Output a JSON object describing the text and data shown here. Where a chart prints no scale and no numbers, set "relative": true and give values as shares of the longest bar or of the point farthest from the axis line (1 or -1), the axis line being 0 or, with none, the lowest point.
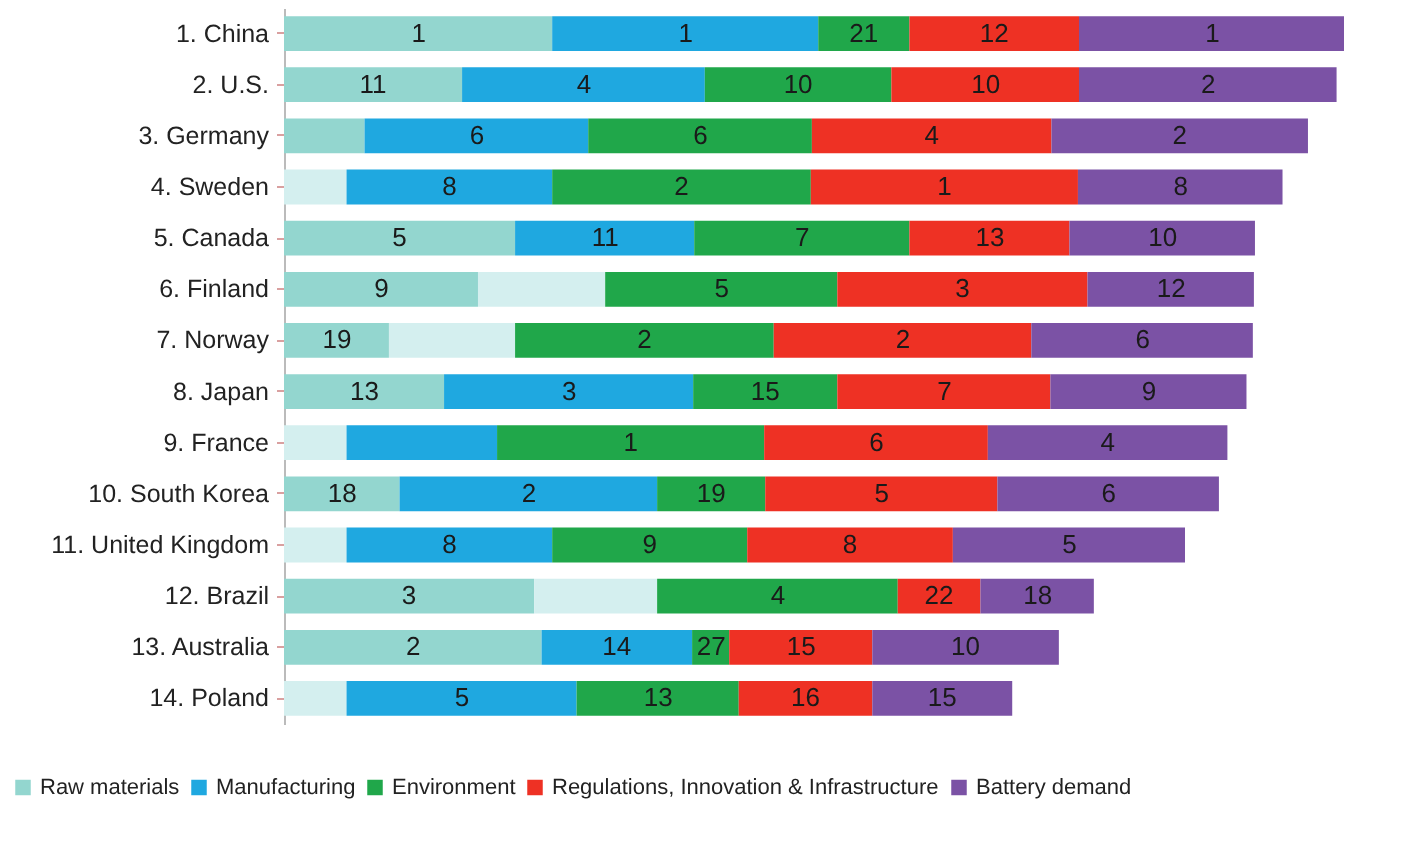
{
  "chart_data": {
    "type": "bar",
    "orientation": "horizontal",
    "stacked": true,
    "relative": true,
    "legend": "bottom",
    "categories": [
      "1. China",
      "2. U.S.",
      "3. Germany",
      "4. Sweden",
      "5. Canada",
      "6. Finland",
      "7. Norway",
      "8. Japan",
      "9. France",
      "10. South Korea",
      "11. United Kingdom",
      "12. Brazil",
      "13. Australia",
      "14. Poland"
    ],
    "series": [
      {
        "name": "Raw materials",
        "color": "#93d6cf",
        "colors": [
          "#93d6cf",
          "#93d6cf",
          "#93d6cf",
          "#d4efef",
          "#93d6cf",
          "#93d6cf",
          "#93d6cf",
          "#93d6cf",
          "#d4efef",
          "#93d6cf",
          "#d4efef",
          "#93d6cf",
          "#93d6cf",
          "#d4efef"
        ],
        "values": [
          0.253,
          0.168,
          0.076,
          0.059,
          0.218,
          0.183,
          0.099,
          0.151,
          0.059,
          0.109,
          0.059,
          0.236,
          0.243,
          0.059
        ]
      },
      {
        "name": "Manufacturing",
        "color": "#1fa8e0",
        "colors": [
          "#1fa8e0",
          "#1fa8e0",
          "#1fa8e0",
          "#1fa8e0",
          "#1fa8e0",
          "#d4efef",
          "#d4efef",
          "#1fa8e0",
          "#1fa8e0",
          "#1fa8e0",
          "#1fa8e0",
          "#d4efef",
          "#1fa8e0",
          "#1fa8e0"
        ],
        "values": [
          0.251,
          0.229,
          0.211,
          0.194,
          0.169,
          0.12,
          0.119,
          0.235,
          0.142,
          0.243,
          0.194,
          0.116,
          0.142,
          0.217
        ]
      },
      {
        "name": "Environment",
        "color": "#20a74a",
        "values": [
          0.086,
          0.176,
          0.211,
          0.244,
          0.203,
          0.219,
          0.244,
          0.136,
          0.252,
          0.102,
          0.184,
          0.227,
          0.035,
          0.153
        ]
      },
      {
        "name": "Regulations, Innovation & Infrastructure",
        "color": "#ee3124",
        "values": [
          0.16,
          0.177,
          0.226,
          0.252,
          0.151,
          0.236,
          0.243,
          0.201,
          0.211,
          0.219,
          0.194,
          0.078,
          0.135,
          0.126
        ]
      },
      {
        "name": "Battery demand",
        "color": "#7b52a5",
        "values": [
          0.25,
          0.243,
          0.242,
          0.193,
          0.175,
          0.157,
          0.209,
          0.185,
          0.226,
          0.209,
          0.219,
          0.107,
          0.176,
          0.132
        ]
      }
    ],
    "annotations": [
      {
        "text": "1",
        "x": 0.127,
        "y": "1. China"
      },
      {
        "text": "1",
        "x": 0.379,
        "y": "1. China"
      },
      {
        "text": "21",
        "x": 0.547,
        "y": "1. China"
      },
      {
        "text": "12",
        "x": 0.67,
        "y": "1. China"
      },
      {
        "text": "1",
        "x": 0.876,
        "y": "1. China"
      },
      {
        "text": "11",
        "x": 0.084,
        "y": "2. U.S."
      },
      {
        "text": "4",
        "x": 0.283,
        "y": "2. U.S."
      },
      {
        "text": "10",
        "x": 0.485,
        "y": "2. U.S."
      },
      {
        "text": "10",
        "x": 0.662,
        "y": "2. U.S."
      },
      {
        "text": "2",
        "x": 0.872,
        "y": "2. U.S."
      },
      {
        "text": "6",
        "x": 0.182,
        "y": "3. Germany"
      },
      {
        "text": "6",
        "x": 0.393,
        "y": "3. Germany"
      },
      {
        "text": "4",
        "x": 0.611,
        "y": "3. Germany"
      },
      {
        "text": "2",
        "x": 0.845,
        "y": "3. Germany"
      },
      {
        "text": "8",
        "x": 0.156,
        "y": "4. Sweden"
      },
      {
        "text": "2",
        "x": 0.375,
        "y": "4. Sweden"
      },
      {
        "text": "1",
        "x": 0.623,
        "y": "4. Sweden"
      },
      {
        "text": "8",
        "x": 0.846,
        "y": "4. Sweden"
      },
      {
        "text": "5",
        "x": 0.109,
        "y": "5. Canada"
      },
      {
        "text": "11",
        "x": 0.303,
        "y": "5. Canada"
      },
      {
        "text": "7",
        "x": 0.489,
        "y": "5. Canada"
      },
      {
        "text": "13",
        "x": 0.666,
        "y": "5. Canada"
      },
      {
        "text": "10",
        "x": 0.829,
        "y": "5. Canada"
      },
      {
        "text": "9",
        "x": 0.092,
        "y": "6. Finland"
      },
      {
        "text": "5",
        "x": 0.413,
        "y": "6. Finland"
      },
      {
        "text": "3",
        "x": 0.64,
        "y": "6. Finland"
      },
      {
        "text": "12",
        "x": 0.837,
        "y": "6. Finland"
      },
      {
        "text": "19",
        "x": 0.05,
        "y": "7. Norway"
      },
      {
        "text": "2",
        "x": 0.34,
        "y": "7. Norway"
      },
      {
        "text": "2",
        "x": 0.584,
        "y": "7. Norway"
      },
      {
        "text": "6",
        "x": 0.81,
        "y": "7. Norway"
      },
      {
        "text": "13",
        "x": 0.076,
        "y": "8. Japan"
      },
      {
        "text": "3",
        "x": 0.269,
        "y": "8. Japan"
      },
      {
        "text": "15",
        "x": 0.454,
        "y": "8. Japan"
      },
      {
        "text": "7",
        "x": 0.623,
        "y": "8. Japan"
      },
      {
        "text": "9",
        "x": 0.816,
        "y": "8. Japan"
      },
      {
        "text": "1",
        "x": 0.327,
        "y": "9. France"
      },
      {
        "text": "6",
        "x": 0.559,
        "y": "9. France"
      },
      {
        "text": "4",
        "x": 0.777,
        "y": "9. France"
      },
      {
        "text": "18",
        "x": 0.055,
        "y": "10. South Korea"
      },
      {
        "text": "2",
        "x": 0.231,
        "y": "10. South Korea"
      },
      {
        "text": "19",
        "x": 0.403,
        "y": "10. South Korea"
      },
      {
        "text": "5",
        "x": 0.564,
        "y": "10. South Korea"
      },
      {
        "text": "6",
        "x": 0.778,
        "y": "10. South Korea"
      },
      {
        "text": "8",
        "x": 0.156,
        "y": "11. United Kingdom"
      },
      {
        "text": "9",
        "x": 0.345,
        "y": "11. United Kingdom"
      },
      {
        "text": "8",
        "x": 0.534,
        "y": "11. United Kingdom"
      },
      {
        "text": "5",
        "x": 0.741,
        "y": "11. United Kingdom"
      },
      {
        "text": "3",
        "x": 0.118,
        "y": "12. Brazil"
      },
      {
        "text": "4",
        "x": 0.466,
        "y": "12. Brazil"
      },
      {
        "text": "22",
        "x": 0.618,
        "y": "12. Brazil"
      },
      {
        "text": "18",
        "x": 0.711,
        "y": "12. Brazil"
      },
      {
        "text": "2",
        "x": 0.122,
        "y": "13. Australia"
      },
      {
        "text": "14",
        "x": 0.314,
        "y": "13. Australia"
      },
      {
        "text": "27",
        "x": 0.403,
        "y": "13. Australia"
      },
      {
        "text": "15",
        "x": 0.488,
        "y": "13. Australia"
      },
      {
        "text": "10",
        "x": 0.643,
        "y": "13. Australia"
      },
      {
        "text": "5",
        "x": 0.168,
        "y": "14. Poland"
      },
      {
        "text": "13",
        "x": 0.353,
        "y": "14. Poland"
      },
      {
        "text": "16",
        "x": 0.492,
        "y": "14. Poland"
      },
      {
        "text": "15",
        "x": 0.621,
        "y": "14. Poland"
      }
    ]
  }
}
